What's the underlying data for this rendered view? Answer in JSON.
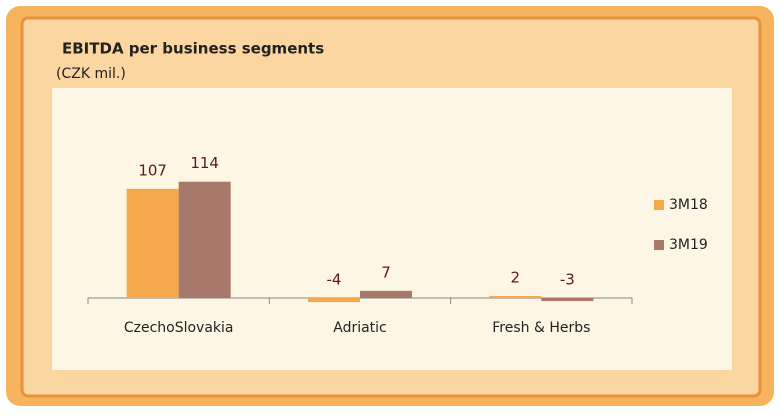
{
  "chart_data": {
    "type": "bar",
    "title": "EBITDA per business segments",
    "subtitle": "(CZK mil.)",
    "categories": [
      "CzechoSlovakia",
      "Adriatic",
      "Fresh & Herbs"
    ],
    "series": [
      {
        "name": "3M18",
        "color": "#f5a94d",
        "values": [
          107,
          -4,
          2
        ]
      },
      {
        "name": "3M19",
        "color": "#a8786a",
        "values": [
          114,
          7,
          -3
        ]
      }
    ],
    "legend": "right"
  }
}
